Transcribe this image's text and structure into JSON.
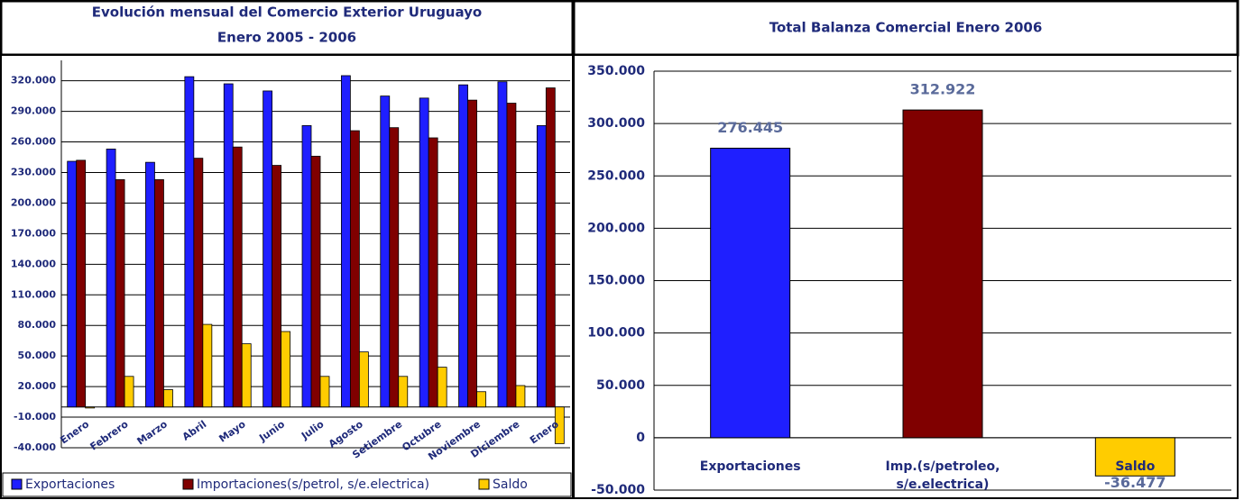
{
  "chart_data": [
    {
      "type": "bar",
      "title": "Evolución mensual del Comercio Exterior Uruguayo",
      "subtitle": "Enero 2005 - 2006",
      "categories": [
        "Enero",
        "Febrero",
        "Marzo",
        "Abril",
        "Mayo",
        "Junio",
        "Julio",
        "Agosto",
        "Setiembre",
        "Octubre",
        "Noviembre",
        "Diciembre",
        "Enero"
      ],
      "series": [
        {
          "name": "Exportaciones",
          "color": "#1f1fff",
          "values": [
            241000,
            253000,
            240000,
            324000,
            317000,
            310000,
            276000,
            325000,
            305000,
            303000,
            316000,
            319000,
            276000
          ]
        },
        {
          "name": "Importaciones(s/petrol, s/e.electrica)",
          "color": "#800000",
          "values": [
            242000,
            223000,
            223000,
            244000,
            255000,
            237000,
            246000,
            271000,
            274000,
            264000,
            301000,
            298000,
            313000
          ]
        },
        {
          "name": "Saldo",
          "color": "#ffcc00",
          "values": [
            -1000,
            30000,
            17000,
            81000,
            62000,
            74000,
            30000,
            54000,
            30000,
            39000,
            15000,
            21000,
            -36000
          ]
        }
      ],
      "ylim": [
        -40000,
        340000
      ],
      "yticks": [
        {
          "value": -40000,
          "label": "-40.000"
        },
        {
          "value": -10000,
          "label": "-10.000"
        },
        {
          "value": 20000,
          "label": "20.000"
        },
        {
          "value": 50000,
          "label": "50.000"
        },
        {
          "value": 80000,
          "label": "80.000"
        },
        {
          "value": 110000,
          "label": "110.000"
        },
        {
          "value": 140000,
          "label": "140.000"
        },
        {
          "value": 170000,
          "label": "170.000"
        },
        {
          "value": 200000,
          "label": "200.000"
        },
        {
          "value": 230000,
          "label": "230.000"
        },
        {
          "value": 260000,
          "label": "260.000"
        },
        {
          "value": 290000,
          "label": "290.000"
        },
        {
          "value": 320000,
          "label": "320.000"
        }
      ],
      "grid": true,
      "legend": "bottom"
    },
    {
      "type": "bar",
      "title": "Total Balanza Comercial  Enero 2006",
      "categories": [
        "Exportaciones",
        "Imp.(s/petroleo, s/e.electrica)",
        "Saldo"
      ],
      "values": [
        276445,
        312922,
        -36477
      ],
      "value_labels": [
        "276.445",
        "312.922",
        "-36.477"
      ],
      "colors": [
        "#1f1fff",
        "#800000",
        "#ffcc00"
      ],
      "ylim": [
        -50000,
        350000
      ],
      "yticks": [
        {
          "value": -50000,
          "label": "-50.000"
        },
        0,
        {
          "value": 50000,
          "label": "50.000"
        },
        {
          "value": 100000,
          "label": "100.000"
        },
        {
          "value": 150000,
          "label": "150.000"
        },
        {
          "value": 200000,
          "label": "200.000"
        },
        {
          "value": 250000,
          "label": "250.000"
        },
        {
          "value": 300000,
          "label": "300.000"
        },
        {
          "value": 350000,
          "label": "350.000"
        }
      ],
      "grid": true
    }
  ]
}
